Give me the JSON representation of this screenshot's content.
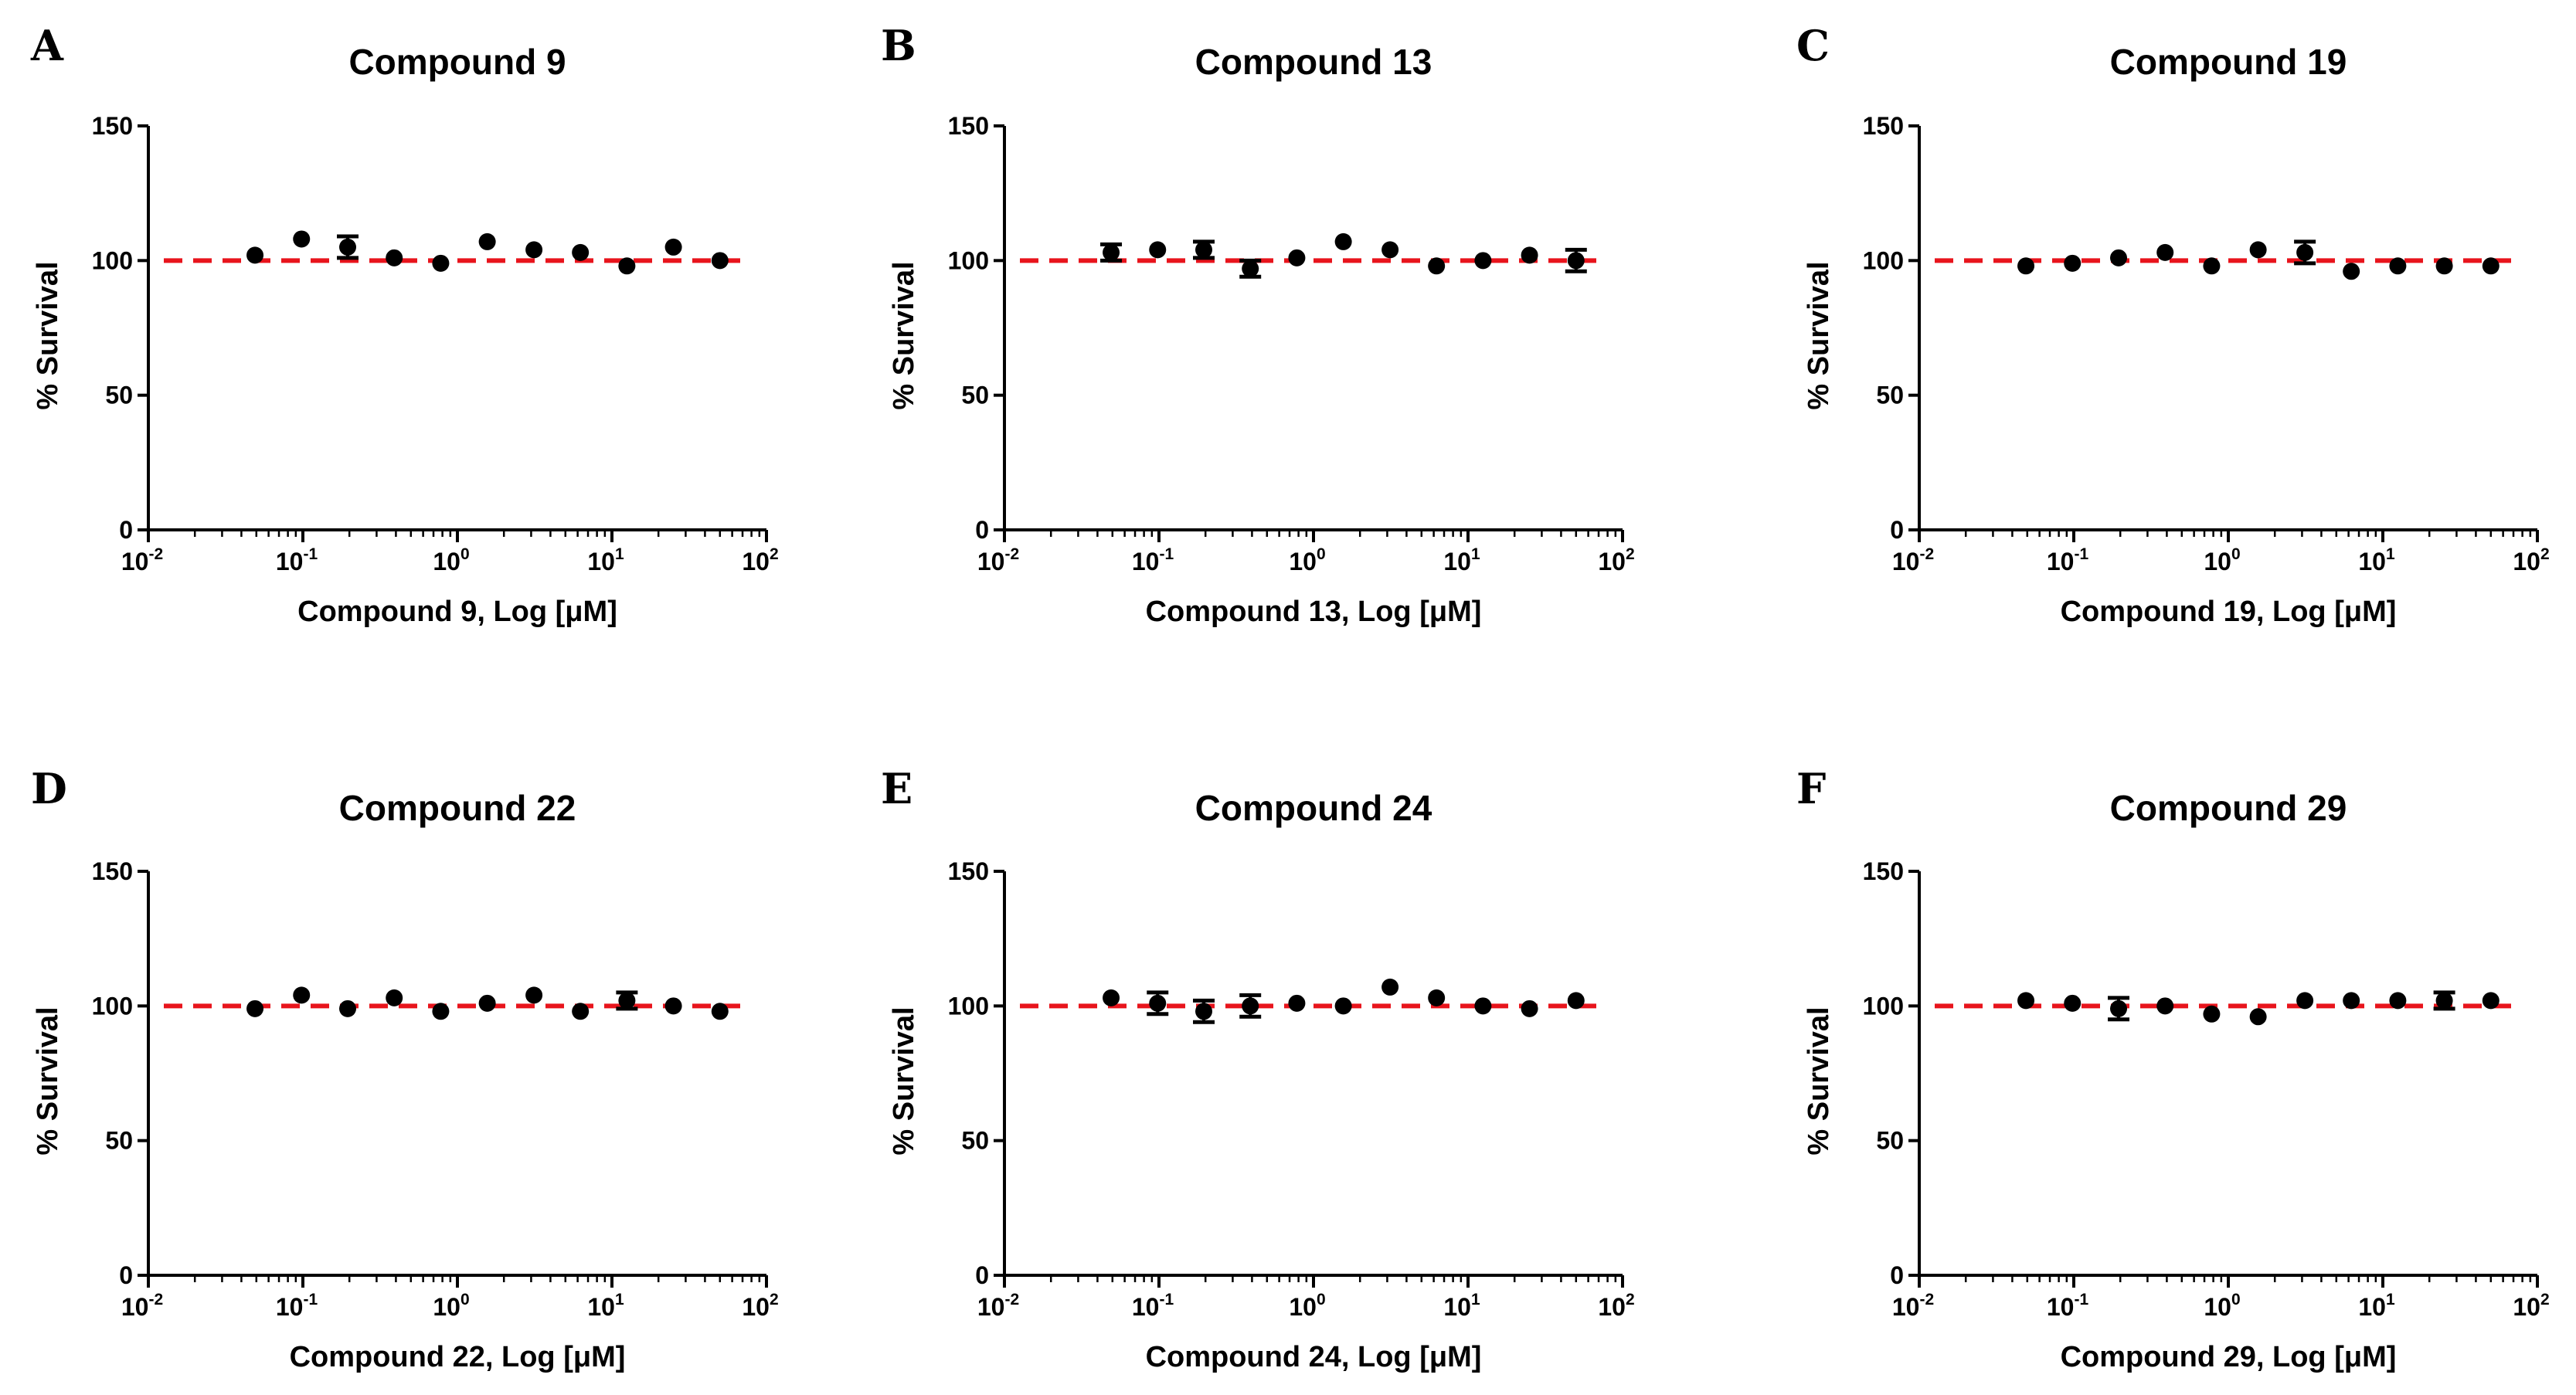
{
  "chart_data": [
    {
      "panel": "A",
      "title": "Compound 9",
      "type": "scatter",
      "xlabel": "Compound 9, Log [μM]",
      "ylabel": "% Survival",
      "x_scale": "log",
      "xlim": [
        0.01,
        100
      ],
      "ylim": [
        0,
        150
      ],
      "yticks": [
        "0",
        "50",
        "100",
        "150"
      ],
      "xticks": [
        {
          "base": "10",
          "exp": "-2"
        },
        {
          "base": "10",
          "exp": "-1"
        },
        {
          "base": "10",
          "exp": "0"
        },
        {
          "base": "10",
          "exp": "1"
        },
        {
          "base": "10",
          "exp": "2"
        }
      ],
      "reference_line": {
        "y": 100,
        "color": "#e8141c",
        "style": "dashed"
      },
      "points": [
        {
          "x": 0.049,
          "y": 102,
          "err": 0
        },
        {
          "x": 0.098,
          "y": 108,
          "err": 0
        },
        {
          "x": 0.195,
          "y": 105,
          "err": 4
        },
        {
          "x": 0.39,
          "y": 101,
          "err": 0
        },
        {
          "x": 0.78,
          "y": 99,
          "err": 0
        },
        {
          "x": 1.56,
          "y": 107,
          "err": 0
        },
        {
          "x": 3.13,
          "y": 104,
          "err": 0
        },
        {
          "x": 6.25,
          "y": 103,
          "err": 0
        },
        {
          "x": 12.5,
          "y": 98,
          "err": 0
        },
        {
          "x": 25,
          "y": 105,
          "err": 0
        },
        {
          "x": 50,
          "y": 100,
          "err": 0
        }
      ]
    },
    {
      "panel": "B",
      "title": "Compound 13",
      "type": "scatter",
      "xlabel": "Compound 13, Log [μM]",
      "ylabel": "% Survival",
      "x_scale": "log",
      "xlim": [
        0.01,
        100
      ],
      "ylim": [
        0,
        150
      ],
      "yticks": [
        "0",
        "50",
        "100",
        "150"
      ],
      "xticks": [
        {
          "base": "10",
          "exp": "-2"
        },
        {
          "base": "10",
          "exp": "-1"
        },
        {
          "base": "10",
          "exp": "0"
        },
        {
          "base": "10",
          "exp": "1"
        },
        {
          "base": "10",
          "exp": "2"
        }
      ],
      "reference_line": {
        "y": 100,
        "color": "#e8141c",
        "style": "dashed"
      },
      "points": [
        {
          "x": 0.049,
          "y": 103,
          "err": 3
        },
        {
          "x": 0.098,
          "y": 104,
          "err": 0
        },
        {
          "x": 0.195,
          "y": 104,
          "err": 3
        },
        {
          "x": 0.39,
          "y": 97,
          "err": 3
        },
        {
          "x": 0.78,
          "y": 101,
          "err": 0
        },
        {
          "x": 1.56,
          "y": 107,
          "err": 0
        },
        {
          "x": 3.13,
          "y": 104,
          "err": 0
        },
        {
          "x": 6.25,
          "y": 98,
          "err": 0
        },
        {
          "x": 12.5,
          "y": 100,
          "err": 0
        },
        {
          "x": 25,
          "y": 102,
          "err": 0
        },
        {
          "x": 50,
          "y": 100,
          "err": 4
        }
      ]
    },
    {
      "panel": "C",
      "title": "Compound 19",
      "type": "scatter",
      "xlabel": "Compound 19, Log [μM]",
      "ylabel": "% Survival",
      "x_scale": "log",
      "xlim": [
        0.01,
        100
      ],
      "ylim": [
        0,
        150
      ],
      "yticks": [
        "0",
        "50",
        "100",
        "150"
      ],
      "xticks": [
        {
          "base": "10",
          "exp": "-2"
        },
        {
          "base": "10",
          "exp": "-1"
        },
        {
          "base": "10",
          "exp": "0"
        },
        {
          "base": "10",
          "exp": "1"
        },
        {
          "base": "10",
          "exp": "2"
        }
      ],
      "reference_line": {
        "y": 100,
        "color": "#e8141c",
        "style": "dashed"
      },
      "points": [
        {
          "x": 0.049,
          "y": 98,
          "err": 0
        },
        {
          "x": 0.098,
          "y": 99,
          "err": 0
        },
        {
          "x": 0.195,
          "y": 101,
          "err": 0
        },
        {
          "x": 0.39,
          "y": 103,
          "err": 0
        },
        {
          "x": 0.78,
          "y": 98,
          "err": 0
        },
        {
          "x": 1.56,
          "y": 104,
          "err": 0
        },
        {
          "x": 3.13,
          "y": 103,
          "err": 4
        },
        {
          "x": 6.25,
          "y": 96,
          "err": 0
        },
        {
          "x": 12.5,
          "y": 98,
          "err": 0
        },
        {
          "x": 25,
          "y": 98,
          "err": 0
        },
        {
          "x": 50,
          "y": 98,
          "err": 0
        }
      ]
    },
    {
      "panel": "D",
      "title": "Compound 22",
      "type": "scatter",
      "xlabel": "Compound 22, Log [μM]",
      "ylabel": "% Survival",
      "x_scale": "log",
      "xlim": [
        0.01,
        100
      ],
      "ylim": [
        0,
        150
      ],
      "yticks": [
        "0",
        "50",
        "100",
        "150"
      ],
      "xticks": [
        {
          "base": "10",
          "exp": "-2"
        },
        {
          "base": "10",
          "exp": "-1"
        },
        {
          "base": "10",
          "exp": "0"
        },
        {
          "base": "10",
          "exp": "1"
        },
        {
          "base": "10",
          "exp": "2"
        }
      ],
      "reference_line": {
        "y": 100,
        "color": "#e8141c",
        "style": "dashed"
      },
      "points": [
        {
          "x": 0.049,
          "y": 99,
          "err": 0
        },
        {
          "x": 0.098,
          "y": 104,
          "err": 0
        },
        {
          "x": 0.195,
          "y": 99,
          "err": 0
        },
        {
          "x": 0.39,
          "y": 103,
          "err": 0
        },
        {
          "x": 0.78,
          "y": 98,
          "err": 0
        },
        {
          "x": 1.56,
          "y": 101,
          "err": 0
        },
        {
          "x": 3.13,
          "y": 104,
          "err": 0
        },
        {
          "x": 6.25,
          "y": 98,
          "err": 0
        },
        {
          "x": 12.5,
          "y": 102,
          "err": 3
        },
        {
          "x": 25,
          "y": 100,
          "err": 0
        },
        {
          "x": 50,
          "y": 98,
          "err": 0
        }
      ]
    },
    {
      "panel": "E",
      "title": "Compound 24",
      "type": "scatter",
      "xlabel": "Compound 24, Log [μM]",
      "ylabel": "% Survival",
      "x_scale": "log",
      "xlim": [
        0.01,
        100
      ],
      "ylim": [
        0,
        150
      ],
      "yticks": [
        "0",
        "50",
        "100",
        "150"
      ],
      "xticks": [
        {
          "base": "10",
          "exp": "-2"
        },
        {
          "base": "10",
          "exp": "-1"
        },
        {
          "base": "10",
          "exp": "0"
        },
        {
          "base": "10",
          "exp": "1"
        },
        {
          "base": "10",
          "exp": "2"
        }
      ],
      "reference_line": {
        "y": 100,
        "color": "#e8141c",
        "style": "dashed"
      },
      "points": [
        {
          "x": 0.049,
          "y": 103,
          "err": 0
        },
        {
          "x": 0.098,
          "y": 101,
          "err": 4
        },
        {
          "x": 0.195,
          "y": 98,
          "err": 4
        },
        {
          "x": 0.39,
          "y": 100,
          "err": 4
        },
        {
          "x": 0.78,
          "y": 101,
          "err": 0
        },
        {
          "x": 1.56,
          "y": 100,
          "err": 0
        },
        {
          "x": 3.13,
          "y": 107,
          "err": 0
        },
        {
          "x": 6.25,
          "y": 103,
          "err": 0
        },
        {
          "x": 12.5,
          "y": 100,
          "err": 0
        },
        {
          "x": 25,
          "y": 99,
          "err": 0
        },
        {
          "x": 50,
          "y": 102,
          "err": 0
        }
      ]
    },
    {
      "panel": "F",
      "title": "Compound 29",
      "type": "scatter",
      "xlabel": "Compound 29, Log [μM]",
      "ylabel": "% Survival",
      "x_scale": "log",
      "xlim": [
        0.01,
        100
      ],
      "ylim": [
        0,
        150
      ],
      "yticks": [
        "0",
        "50",
        "100",
        "150"
      ],
      "xticks": [
        {
          "base": "10",
          "exp": "-2"
        },
        {
          "base": "10",
          "exp": "-1"
        },
        {
          "base": "10",
          "exp": "0"
        },
        {
          "base": "10",
          "exp": "1"
        },
        {
          "base": "10",
          "exp": "2"
        }
      ],
      "reference_line": {
        "y": 100,
        "color": "#e8141c",
        "style": "dashed"
      },
      "points": [
        {
          "x": 0.049,
          "y": 102,
          "err": 0
        },
        {
          "x": 0.098,
          "y": 101,
          "err": 0
        },
        {
          "x": 0.195,
          "y": 99,
          "err": 4
        },
        {
          "x": 0.39,
          "y": 100,
          "err": 0
        },
        {
          "x": 0.78,
          "y": 97,
          "err": 0
        },
        {
          "x": 1.56,
          "y": 96,
          "err": 0
        },
        {
          "x": 3.13,
          "y": 102,
          "err": 0
        },
        {
          "x": 6.25,
          "y": 102,
          "err": 0
        },
        {
          "x": 12.5,
          "y": 102,
          "err": 0
        },
        {
          "x": 25,
          "y": 102,
          "err": 3
        },
        {
          "x": 50,
          "y": 102,
          "err": 0
        }
      ]
    }
  ]
}
